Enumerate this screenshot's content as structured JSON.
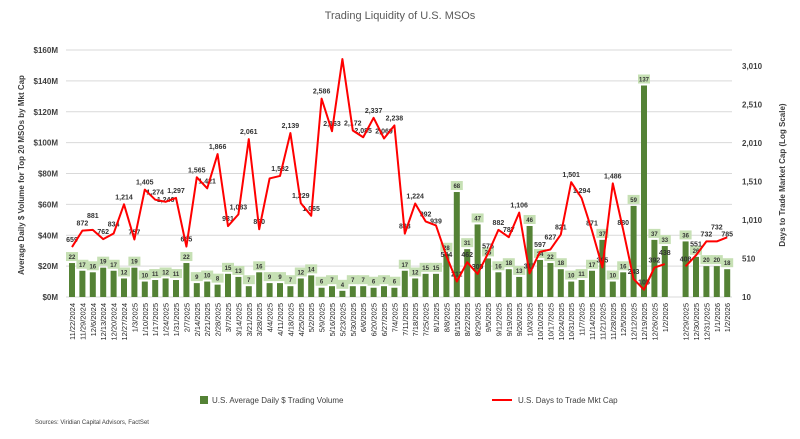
{
  "chart_data": {
    "type": "bar+line",
    "title": "Trading Liquidity of U.S. MSOs",
    "ylabel_left": "Average Daily $ Volume for Top 20 MSOs by Mkt Cap",
    "ylabel_right": "Days to Trade Market Cap (Log Scale)",
    "left_ticks": [
      "$0M",
      "$20M",
      "$40M",
      "$60M",
      "$80M",
      "$100M",
      "$120M",
      "$140M",
      "$160M"
    ],
    "left_range": [
      0,
      160
    ],
    "right_ticks": [
      "10",
      "510",
      "1,010",
      "1,510",
      "2,010",
      "2,510",
      "3,010"
    ],
    "right_range": [
      10,
      3010
    ],
    "grid": true,
    "legend_position": "bottom",
    "source": "Sources: Viridian Capital Advisors, FactSet",
    "groups": [
      {
        "categories": [
          "11/22/2024",
          "11/29/2024",
          "12/6/2024",
          "12/13/2024",
          "12/20/2024",
          "12/27/2024",
          "1/3/2025",
          "1/10/2025",
          "1/17/2025",
          "1/24/2025",
          "1/31/2025",
          "2/7/2025",
          "2/14/2025",
          "2/21/2025",
          "2/28/2025",
          "3/7/2025",
          "3/14/2025",
          "3/21/2025",
          "3/28/2025",
          "4/4/2025",
          "4/11/2025",
          "4/18/2025",
          "4/25/2025",
          "5/2/2025",
          "5/9/2025",
          "5/16/2025",
          "5/23/2025",
          "5/30/2025",
          "6/6/2025",
          "6/20/2025",
          "6/27/2025",
          "7/4/2025",
          "7/11/2025",
          "7/18/2025",
          "7/25/2025",
          "8/1/2025",
          "8/8/2025",
          "8/15/2025",
          "8/22/2025",
          "8/29/2025",
          "9/5/2025",
          "9/12/2025",
          "9/19/2025",
          "9/26/2025",
          "10/3/2025",
          "10/10/2025",
          "10/17/2025",
          "10/24/2025",
          "10/31/2025",
          "11/7/2025",
          "11/14/2025",
          "11/21/2025",
          "11/28/2025",
          "12/5/2025",
          "12/12/2025",
          "12/19/2025",
          "12/26/2025",
          "1/2/2026"
        ],
        "volume": [
          22,
          17,
          16,
          19,
          17,
          12,
          19,
          10,
          11,
          12,
          11,
          22,
          9,
          10,
          8,
          15,
          13,
          7,
          16,
          9,
          9,
          7,
          12,
          14,
          6,
          7,
          4,
          7,
          7,
          6,
          7,
          6,
          17,
          12,
          15,
          15,
          28,
          68,
          31,
          47,
          25,
          16,
          18,
          13,
          46,
          24,
          22,
          18,
          10,
          11,
          17,
          37,
          10,
          16,
          59,
          137,
          37,
          33
        ],
        "days": [
          659,
          872,
          881,
          762,
          834,
          1214,
          757,
          1405,
          1274,
          1246,
          1297,
          665,
          1565,
          1421,
          1866,
          931,
          1083,
          2061,
          890,
          1550,
          1582,
          2139,
          1229,
          1065,
          2586,
          2163,
          3100,
          2172,
          2085,
          2337,
          2069,
          2238,
          833,
          1224,
          992,
          939,
          544,
          211,
          462,
          309,
          575,
          882,
          787,
          1106,
          317,
          597,
          627,
          821,
          1501,
          1294,
          871,
          395,
          1486,
          880,
          243,
          105,
          392,
          438
        ],
        "days_labeled": [
          true,
          true,
          true,
          true,
          true,
          true,
          true,
          true,
          true,
          true,
          true,
          true,
          true,
          true,
          true,
          true,
          true,
          true,
          true,
          false,
          true,
          true,
          true,
          true,
          true,
          true,
          false,
          true,
          true,
          true,
          true,
          true,
          true,
          true,
          true,
          true,
          true,
          true,
          true,
          true,
          true,
          true,
          true,
          true,
          true,
          true,
          true,
          true,
          true,
          true,
          true,
          true,
          true,
          true,
          true,
          true,
          true,
          true
        ]
      },
      {
        "categories": [
          "12/29/2025",
          "12/30/2025",
          "12/31/2025",
          "1/1/2026",
          "1/2/2026"
        ],
        "volume": [
          36,
          26,
          20,
          20,
          18
        ],
        "days": [
          408,
          551,
          732,
          732,
          785
        ],
        "days_labeled": [
          true,
          true,
          true,
          true,
          true
        ]
      }
    ],
    "series": [
      {
        "name": "U.S. Average Daily $ Trading Volume",
        "type": "bar",
        "color": "#548235"
      },
      {
        "name": "U.S. Days to Trade Mkt Cap",
        "type": "line",
        "color": "#ff0000"
      }
    ]
  }
}
